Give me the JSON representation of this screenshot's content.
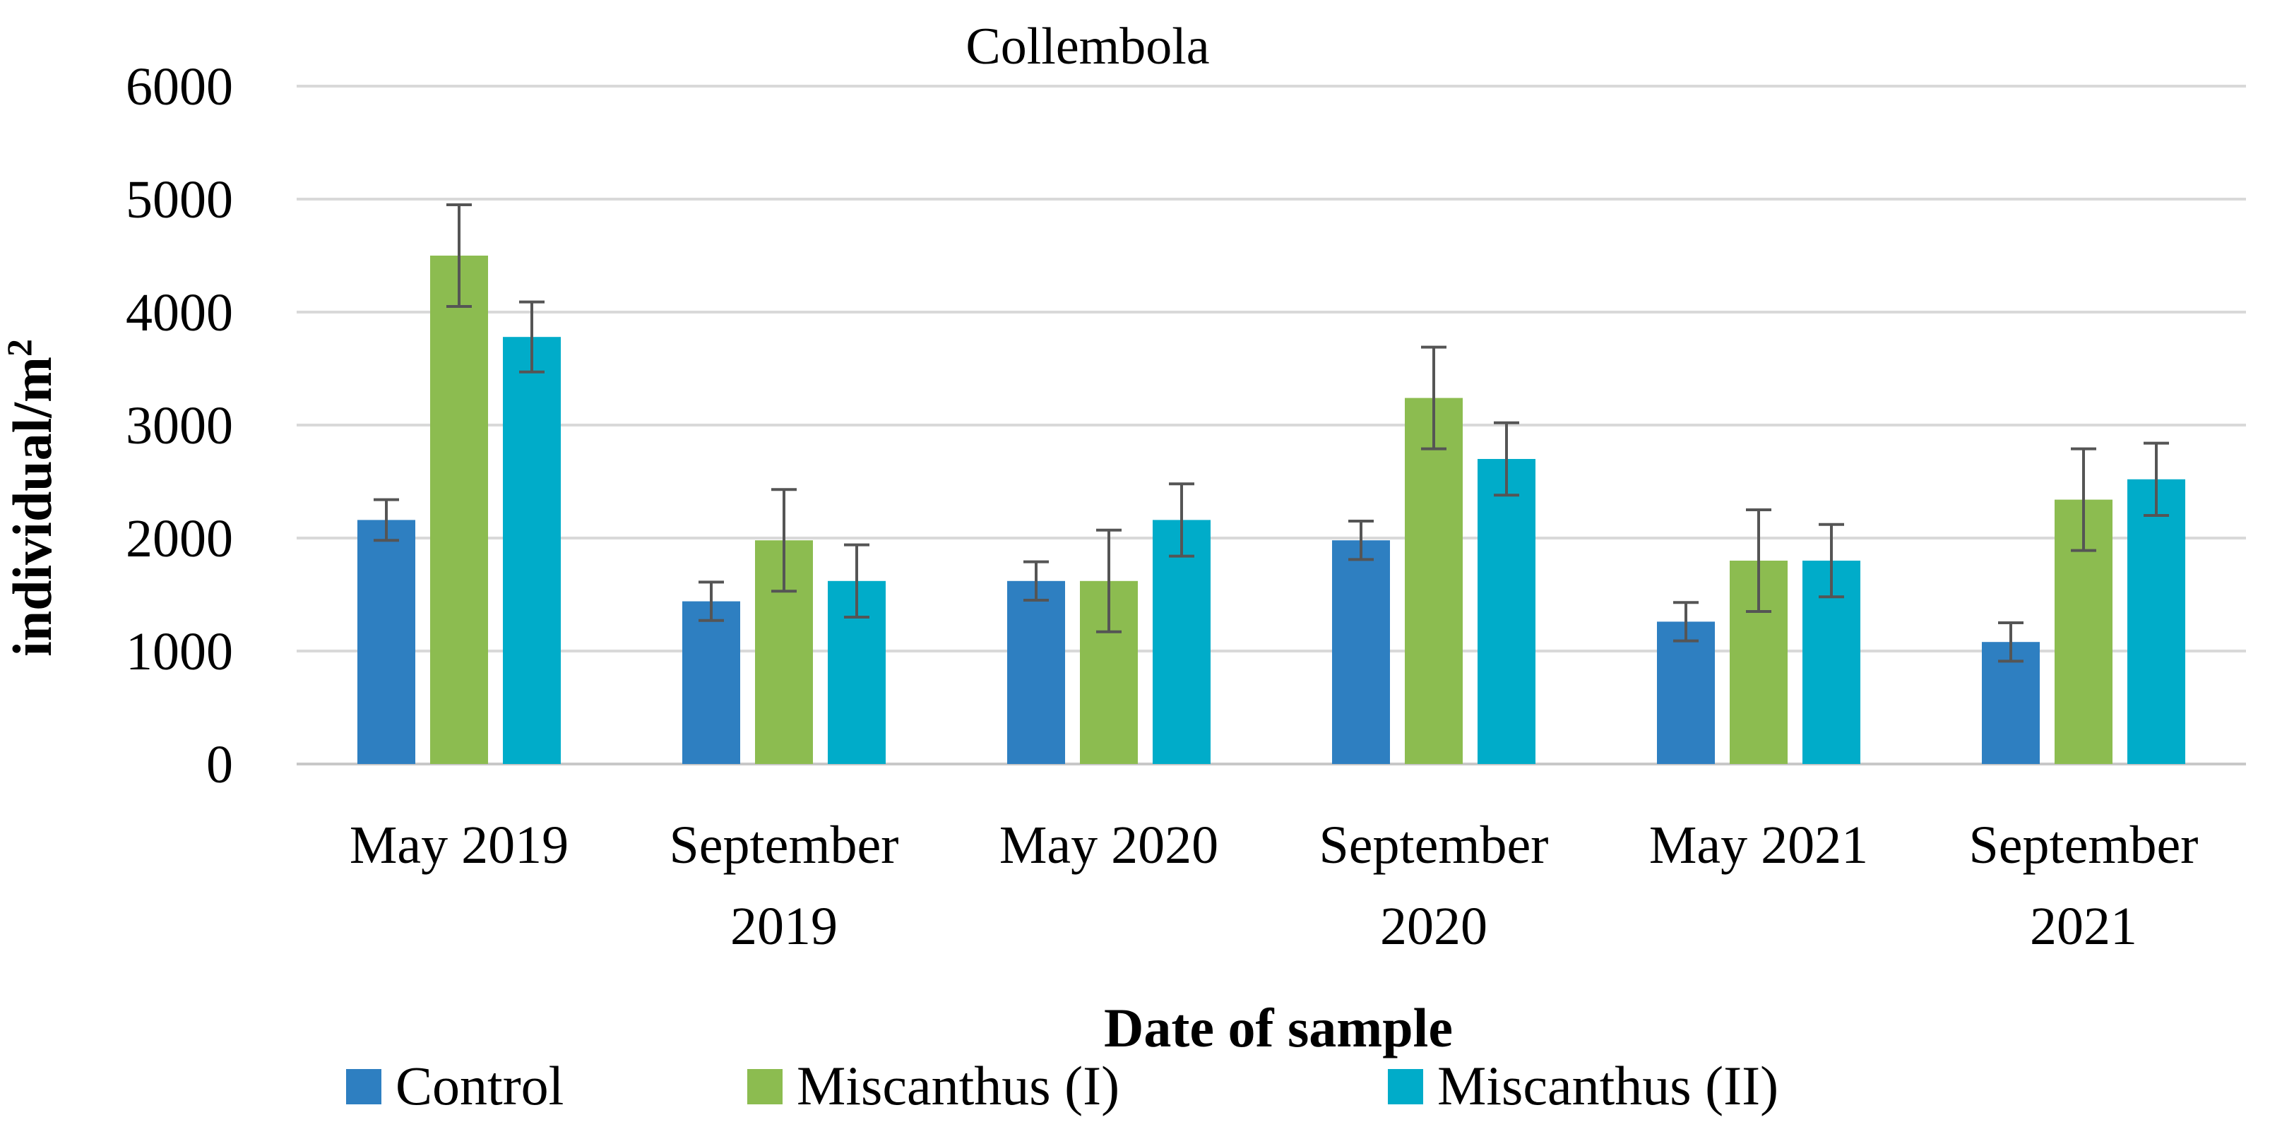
{
  "chart_data": {
    "type": "bar",
    "title": "Collembola",
    "xlabel": "Date of sample",
    "ylabel_main": "individual/m",
    "ylabel_superscript": "2",
    "ylim": [
      0,
      6000
    ],
    "yticks": [
      "0",
      "1000",
      "2000",
      "3000",
      "4000",
      "5000",
      "6000"
    ],
    "grid": true,
    "legend_position": "bottom",
    "categories": [
      {
        "line1": "May 2019",
        "line2": ""
      },
      {
        "line1": "September",
        "line2": "2019"
      },
      {
        "line1": "May 2020",
        "line2": ""
      },
      {
        "line1": "September",
        "line2": "2020"
      },
      {
        "line1": "May 2021",
        "line2": ""
      },
      {
        "line1": "September",
        "line2": "2021"
      }
    ],
    "series": [
      {
        "name": "Control",
        "color": "#2e7fc1",
        "values": [
          2160,
          1440,
          1620,
          1980,
          1260,
          1080
        ],
        "error": [
          180,
          170,
          170,
          170,
          170,
          170
        ]
      },
      {
        "name": "Miscanthus (I)",
        "color": "#8cbc50",
        "values": [
          4500,
          1980,
          1620,
          3240,
          1800,
          2340
        ],
        "error": [
          450,
          450,
          450,
          450,
          450,
          450
        ]
      },
      {
        "name": "Miscanthus (II)",
        "color": "#00acc9",
        "values": [
          3780,
          1620,
          2160,
          2700,
          1800,
          2520
        ],
        "error": [
          310,
          320,
          320,
          320,
          320,
          320
        ]
      }
    ]
  }
}
